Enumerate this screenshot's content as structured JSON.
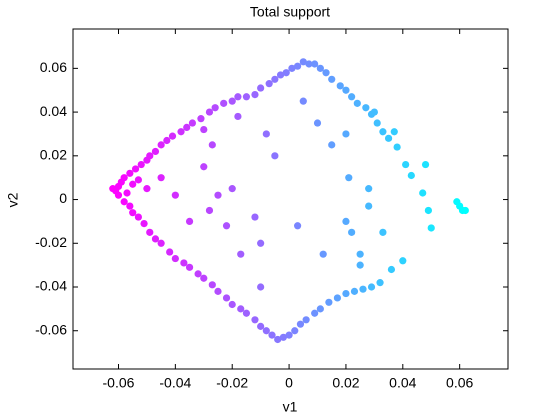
{
  "chart_data": {
    "type": "scatter",
    "title": "Total support",
    "xlabel": "v1",
    "ylabel": "v2",
    "colormap": [
      "#ff00ff",
      "#00ffff"
    ],
    "xlim": [
      -0.076,
      0.077
    ],
    "ylim": [
      -0.0775,
      0.078
    ],
    "xticks": [
      -0.06,
      -0.04,
      -0.02,
      0,
      0.02,
      0.04,
      0.06
    ],
    "yticks": [
      -0.06,
      -0.04,
      -0.02,
      0,
      0.02,
      0.04,
      0.06
    ],
    "grid": false,
    "x": [
      -0.062,
      -0.061,
      -0.06,
      -0.059,
      -0.06,
      -0.058,
      -0.057,
      -0.056,
      -0.055,
      -0.058,
      -0.056,
      -0.054,
      -0.053,
      -0.055,
      -0.053,
      -0.052,
      -0.05,
      -0.051,
      -0.049,
      -0.05,
      -0.047,
      -0.045,
      -0.043,
      -0.041,
      -0.038,
      -0.036,
      -0.034,
      -0.031,
      -0.03,
      -0.028,
      -0.026,
      -0.023,
      -0.02,
      -0.018,
      -0.015,
      -0.012,
      -0.01,
      -0.007,
      -0.005,
      -0.003,
      -0.001,
      0.001,
      0.003,
      0.005,
      0.007,
      0.009,
      0.011,
      0.013,
      0.015,
      0.018,
      0.02,
      0.022,
      0.024,
      0.027,
      0.029,
      0.031,
      0.033,
      0.035,
      0.037,
      0.038,
      0.041,
      0.043,
      0.048,
      0.047,
      0.049,
      0.05,
      0.059,
      0.06,
      0.061,
      0.062,
      -0.049,
      -0.047,
      -0.045,
      -0.042,
      -0.04,
      -0.037,
      -0.035,
      -0.032,
      -0.03,
      -0.027,
      -0.025,
      -0.022,
      -0.02,
      -0.017,
      -0.015,
      -0.012,
      -0.01,
      -0.008,
      -0.006,
      -0.004,
      -0.002,
      0,
      0.002,
      0.004,
      0.006,
      0.009,
      0.011,
      0.014,
      0.017,
      0.02,
      0.023,
      0.026,
      0.029,
      0.032,
      0.025,
      0.036,
      -0.045,
      -0.04,
      -0.035,
      -0.03,
      -0.028,
      -0.027,
      -0.025,
      -0.022,
      -0.02,
      -0.018,
      -0.017,
      -0.012,
      -0.01,
      -0.008,
      -0.01,
      -0.005,
      0.003,
      0.005,
      0.01,
      0.012,
      0.015,
      0.02,
      0.02,
      0.021,
      0.022,
      0.028,
      0.028,
      0.033,
      0.03,
      0.04,
      0.025
    ],
    "values": [
      0.005,
      0.004,
      0.006,
      0.008,
      0.002,
      0.01,
      0.003,
      0.012,
      0.007,
      -0.001,
      -0.003,
      0.014,
      0.009,
      -0.006,
      -0.008,
      0.016,
      0.018,
      -0.011,
      0.02,
      0.005,
      0.022,
      0.025,
      0.027,
      0.029,
      0.031,
      0.033,
      0.035,
      0.037,
      0.032,
      0.04,
      0.042,
      0.044,
      0.045,
      0.047,
      0.047,
      0.048,
      0.051,
      0.053,
      0.055,
      0.057,
      0.058,
      0.06,
      0.061,
      0.063,
      0.062,
      0.062,
      0.06,
      0.058,
      0.055,
      0.052,
      0.05,
      0.047,
      0.044,
      0.042,
      0.039,
      0.035,
      0.031,
      0.028,
      0.031,
      0.024,
      0.016,
      0.011,
      0.016,
      0.003,
      -0.005,
      -0.013,
      -0.001,
      -0.003,
      -0.005,
      -0.005,
      -0.015,
      -0.018,
      -0.02,
      -0.024,
      -0.027,
      -0.029,
      -0.031,
      -0.034,
      -0.036,
      -0.039,
      -0.042,
      -0.045,
      -0.048,
      -0.05,
      -0.052,
      -0.055,
      -0.058,
      -0.06,
      -0.062,
      -0.064,
      -0.063,
      -0.062,
      -0.06,
      -0.057,
      -0.055,
      -0.052,
      -0.05,
      -0.047,
      -0.045,
      -0.043,
      -0.042,
      -0.041,
      -0.04,
      -0.038,
      -0.03,
      -0.032,
      0.01,
      0.002,
      -0.01,
      0.015,
      -0.005,
      0.025,
      0.002,
      -0.012,
      0.005,
      0.038,
      -0.025,
      -0.008,
      -0.04,
      0.03,
      -0.02,
      0.02,
      -0.012,
      0.045,
      0.035,
      -0.025,
      0.025,
      -0.01,
      0.03,
      0.01,
      -0.015,
      -0.003,
      0.005,
      -0.015,
      0.04,
      -0.028,
      -0.025
    ]
  }
}
